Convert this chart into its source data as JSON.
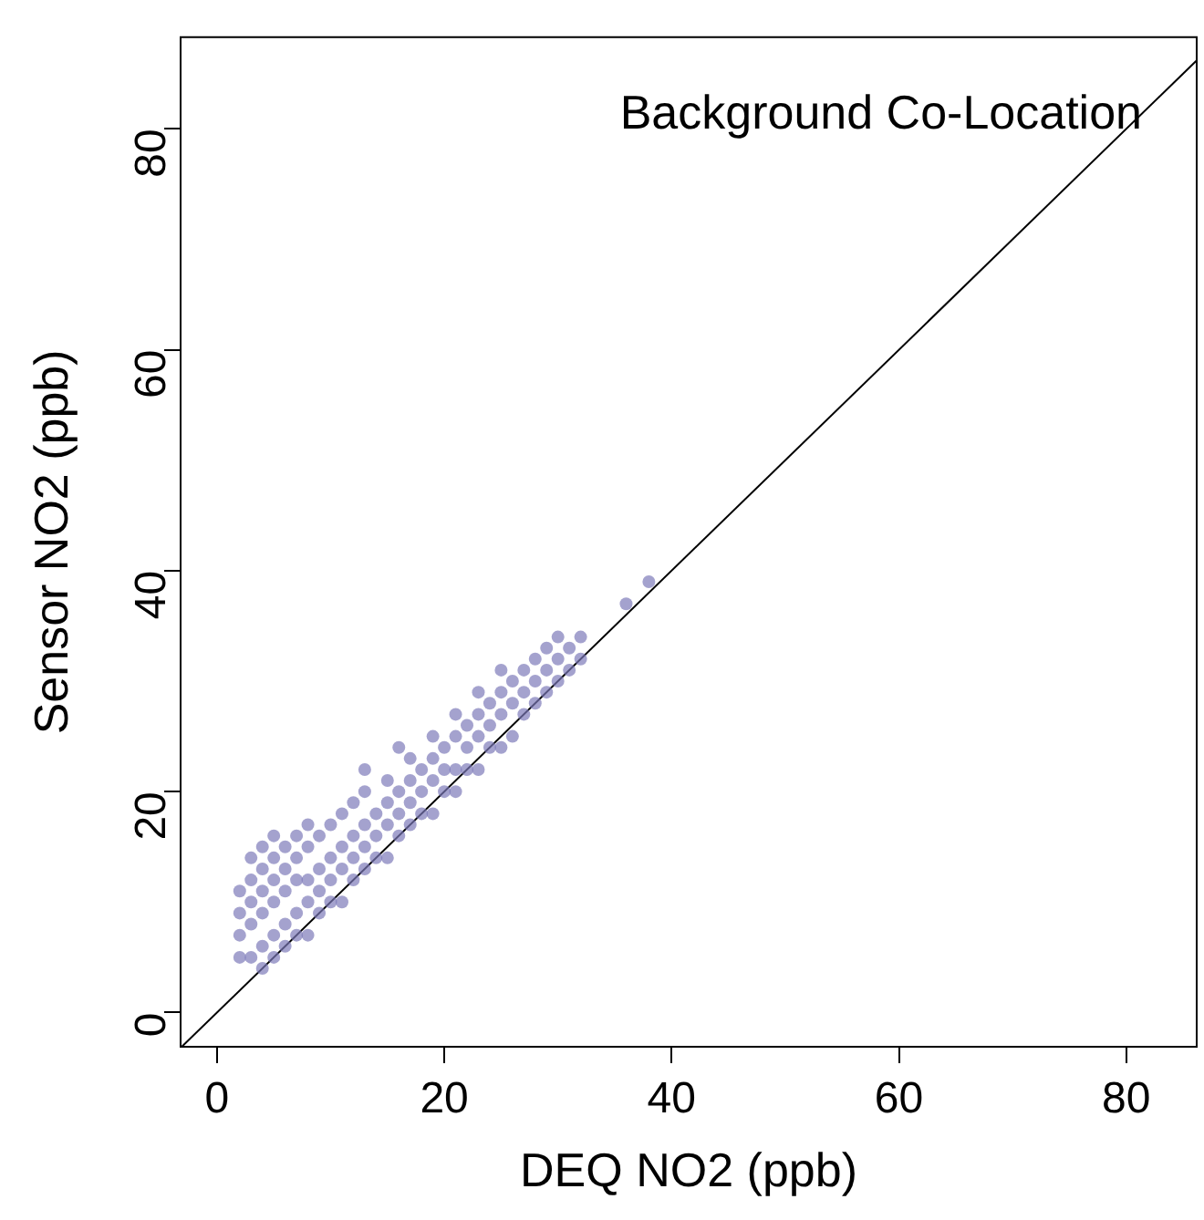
{
  "chart_data": {
    "type": "scatter",
    "xlabel": "DEQ NO2 (ppb)",
    "ylabel": "Sensor NO2 (ppb)",
    "annotations": [
      "Background Co-Location"
    ],
    "xlim": [
      -3.2,
      86.2
    ],
    "ylim": [
      -3.1,
      88.3
    ],
    "xticks": [
      0,
      20,
      40,
      60,
      80
    ],
    "yticks": [
      0,
      20,
      40,
      60,
      80
    ],
    "grid": false,
    "legend": false,
    "marker": "circle",
    "series": [
      {
        "type": "scatter",
        "color": "#7b78b8",
        "x": [
          2,
          2,
          2,
          2,
          3,
          3,
          3,
          3,
          3,
          4,
          4,
          4,
          4,
          4,
          4,
          5,
          5,
          5,
          5,
          5,
          5,
          6,
          6,
          6,
          6,
          6,
          7,
          7,
          7,
          7,
          7,
          8,
          8,
          8,
          8,
          8,
          9,
          9,
          9,
          9,
          10,
          10,
          10,
          10,
          11,
          11,
          11,
          11,
          12,
          12,
          12,
          12,
          13,
          13,
          13,
          13,
          13,
          14,
          14,
          14,
          15,
          15,
          15,
          15,
          16,
          16,
          16,
          16,
          17,
          17,
          17,
          17,
          18,
          18,
          18,
          19,
          19,
          19,
          19,
          20,
          20,
          20,
          21,
          21,
          21,
          21,
          22,
          22,
          22,
          23,
          23,
          23,
          23,
          24,
          24,
          24,
          25,
          25,
          25,
          25,
          26,
          26,
          26,
          27,
          27,
          27,
          28,
          28,
          28,
          29,
          29,
          29,
          30,
          30,
          30,
          31,
          31,
          32,
          32,
          36,
          38
        ],
        "values": [
          5,
          7,
          9,
          11,
          5,
          8,
          10,
          12,
          14,
          4,
          6,
          9,
          11,
          13,
          15,
          5,
          7,
          10,
          12,
          14,
          16,
          6,
          8,
          11,
          13,
          15,
          7,
          9,
          12,
          14,
          16,
          7,
          10,
          12,
          15,
          17,
          9,
          11,
          13,
          16,
          10,
          12,
          14,
          17,
          10,
          13,
          15,
          18,
          12,
          14,
          16,
          19,
          13,
          15,
          17,
          20,
          22,
          14,
          16,
          18,
          14,
          17,
          19,
          21,
          16,
          18,
          20,
          24,
          17,
          19,
          21,
          23,
          18,
          20,
          22,
          18,
          21,
          23,
          25,
          20,
          22,
          24,
          20,
          22,
          25,
          27,
          22,
          24,
          26,
          22,
          25,
          27,
          29,
          24,
          26,
          28,
          24,
          27,
          29,
          31,
          25,
          28,
          30,
          27,
          29,
          31,
          28,
          30,
          32,
          29,
          31,
          33,
          30,
          32,
          34,
          31,
          33,
          32,
          34,
          37,
          39
        ]
      },
      {
        "type": "line",
        "color": "#000000",
        "line_style": "solid",
        "marker": "none",
        "x": [
          -3.1,
          86.2
        ],
        "values": [
          -3.1,
          86.2
        ]
      }
    ]
  }
}
